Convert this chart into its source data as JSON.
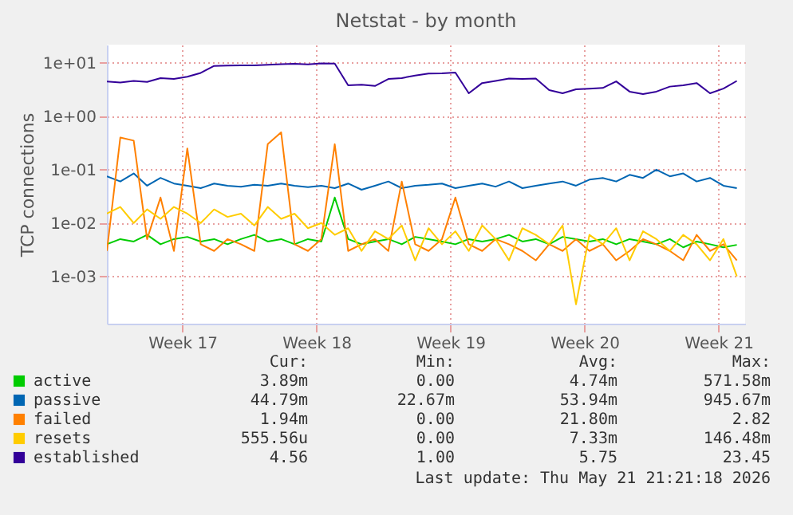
{
  "chart_data": {
    "type": "line",
    "title": "Netstat - by month",
    "ylabel": "TCP connections",
    "log": true,
    "grid": true,
    "legend": "bottom",
    "marker": "none",
    "line_style": "solid",
    "x": [
      "2026-04-18T13:21",
      "2026-04-19T06:09",
      "2026-04-19T22:57",
      "2026-04-20T15:45",
      "2026-04-21T08:33",
      "2026-04-22T01:21",
      "2026-04-22T18:09",
      "2026-04-23T10:57",
      "2026-04-24T03:45",
      "2026-04-24T20:33",
      "2026-04-25T13:21",
      "2026-04-26T06:09",
      "2026-04-26T22:57",
      "2026-04-27T15:45",
      "2026-04-28T08:33",
      "2026-04-29T01:21",
      "2026-04-29T18:09",
      "2026-04-30T10:57",
      "2026-05-01T03:45",
      "2026-05-01T20:33",
      "2026-05-02T13:21",
      "2026-05-03T06:09",
      "2026-05-03T22:57",
      "2026-05-04T15:45",
      "2026-05-05T08:33",
      "2026-05-06T01:21",
      "2026-05-06T18:09",
      "2026-05-07T10:57",
      "2026-05-08T03:45",
      "2026-05-08T20:33",
      "2026-05-09T13:21",
      "2026-05-10T06:09",
      "2026-05-10T22:57",
      "2026-05-11T15:45",
      "2026-05-12T08:33",
      "2026-05-13T01:21",
      "2026-05-13T18:09",
      "2026-05-14T10:57",
      "2026-05-15T03:45",
      "2026-05-15T20:33",
      "2026-05-16T13:21",
      "2026-05-17T06:09",
      "2026-05-17T22:57",
      "2026-05-18T15:45",
      "2026-05-19T08:33",
      "2026-05-20T01:21",
      "2026-05-20T18:09",
      "2026-05-21T10:57"
    ],
    "xlim": [
      "2026-04-18T13:21",
      "2026-05-21T21:21"
    ],
    "xticks": [
      {
        "value": "2026-04-22T12:00",
        "label": "Week 17"
      },
      {
        "value": "2026-04-29T12:00",
        "label": "Week 18"
      },
      {
        "value": "2026-05-06T12:00",
        "label": "Week 19"
      },
      {
        "value": "2026-05-13T12:00",
        "label": "Week 20"
      },
      {
        "value": "2026-05-20T12:00",
        "label": "Week 21"
      }
    ],
    "ylim": [
      0.00013,
      22
    ],
    "yticks": [
      {
        "value": 0.001,
        "label": "1e-03"
      },
      {
        "value": 0.01,
        "label": "1e-02"
      },
      {
        "value": 0.1,
        "label": "1e-01"
      },
      {
        "value": 1,
        "label": "1e+00"
      },
      {
        "value": 10,
        "label": "1e+01"
      }
    ],
    "series": [
      {
        "name": "active",
        "color": "#00cc00",
        "values": [
          0.004,
          0.005,
          0.0045,
          0.006,
          0.004,
          0.005,
          0.0055,
          0.0045,
          0.005,
          0.004,
          0.005,
          0.006,
          0.0045,
          0.005,
          0.004,
          0.005,
          0.0045,
          0.03,
          0.005,
          0.004,
          0.0045,
          0.005,
          0.004,
          0.0055,
          0.005,
          0.0045,
          0.004,
          0.005,
          0.0045,
          0.005,
          0.006,
          0.0045,
          0.005,
          0.004,
          0.0055,
          0.005,
          0.0045,
          0.005,
          0.004,
          0.005,
          0.0045,
          0.004,
          0.005,
          0.0035,
          0.0045,
          0.004,
          0.0035,
          0.0039
        ]
      },
      {
        "name": "passive",
        "color": "#0066b3",
        "values": [
          0.075,
          0.06,
          0.085,
          0.05,
          0.07,
          0.055,
          0.05,
          0.045,
          0.055,
          0.05,
          0.048,
          0.052,
          0.05,
          0.055,
          0.05,
          0.047,
          0.05,
          0.045,
          0.055,
          0.042,
          0.05,
          0.06,
          0.045,
          0.05,
          0.052,
          0.055,
          0.045,
          0.05,
          0.055,
          0.048,
          0.06,
          0.045,
          0.05,
          0.055,
          0.06,
          0.05,
          0.065,
          0.07,
          0.06,
          0.08,
          0.07,
          0.1,
          0.075,
          0.085,
          0.06,
          0.07,
          0.05,
          0.045
        ]
      },
      {
        "name": "failed",
        "color": "#ff8000",
        "values": [
          0.003,
          0.4,
          0.35,
          0.005,
          0.03,
          0.003,
          0.25,
          0.004,
          0.003,
          0.005,
          0.004,
          0.003,
          0.3,
          0.5,
          0.004,
          0.003,
          0.005,
          0.3,
          0.003,
          0.004,
          0.005,
          0.003,
          0.06,
          0.004,
          0.003,
          0.005,
          0.03,
          0.004,
          0.003,
          0.005,
          0.004,
          0.003,
          0.002,
          0.004,
          0.003,
          0.005,
          0.003,
          0.004,
          0.002,
          0.003,
          0.005,
          0.004,
          0.003,
          0.002,
          0.006,
          0.003,
          0.004,
          0.002
        ]
      },
      {
        "name": "resets",
        "color": "#ffcc00",
        "values": [
          0.015,
          0.02,
          0.01,
          0.018,
          0.012,
          0.02,
          0.015,
          0.01,
          0.018,
          0.013,
          0.015,
          0.009,
          0.02,
          0.012,
          0.015,
          0.008,
          0.01,
          0.006,
          0.008,
          0.003,
          0.007,
          0.005,
          0.009,
          0.002,
          0.008,
          0.004,
          0.007,
          0.003,
          0.009,
          0.005,
          0.002,
          0.008,
          0.006,
          0.004,
          0.009,
          0.0003,
          0.006,
          0.004,
          0.008,
          0.002,
          0.007,
          0.005,
          0.003,
          0.006,
          0.004,
          0.002,
          0.005,
          0.001
        ]
      },
      {
        "name": "established",
        "color": "#330099",
        "values": [
          4.5,
          4.3,
          4.6,
          4.4,
          5.2,
          5.0,
          5.5,
          6.5,
          8.8,
          8.9,
          9.0,
          9.0,
          9.2,
          9.5,
          9.6,
          9.4,
          9.8,
          9.7,
          3.8,
          3.9,
          3.7,
          5.0,
          5.2,
          5.8,
          6.3,
          6.4,
          6.6,
          2.7,
          4.2,
          4.6,
          5.1,
          5.0,
          5.1,
          3.1,
          2.7,
          3.2,
          3.3,
          3.4,
          4.5,
          2.9,
          2.6,
          2.9,
          3.6,
          3.8,
          4.2,
          2.7,
          3.3,
          4.6
        ]
      }
    ],
    "annotations": [
      "Cur:",
      "Min:",
      "Avg:",
      "Max:",
      "3.89m",
      "0.00",
      "4.74m",
      "571.58m",
      "44.79m",
      "22.67m",
      "53.94m",
      "945.67m",
      "1.94m",
      "0.00",
      "21.80m",
      "2.82",
      "555.56u",
      "0.00",
      "7.33m",
      "146.48m",
      "4.56",
      "1.00",
      "5.75",
      "23.45",
      "Last update: Thu May 21 21:21:18 2026"
    ]
  }
}
